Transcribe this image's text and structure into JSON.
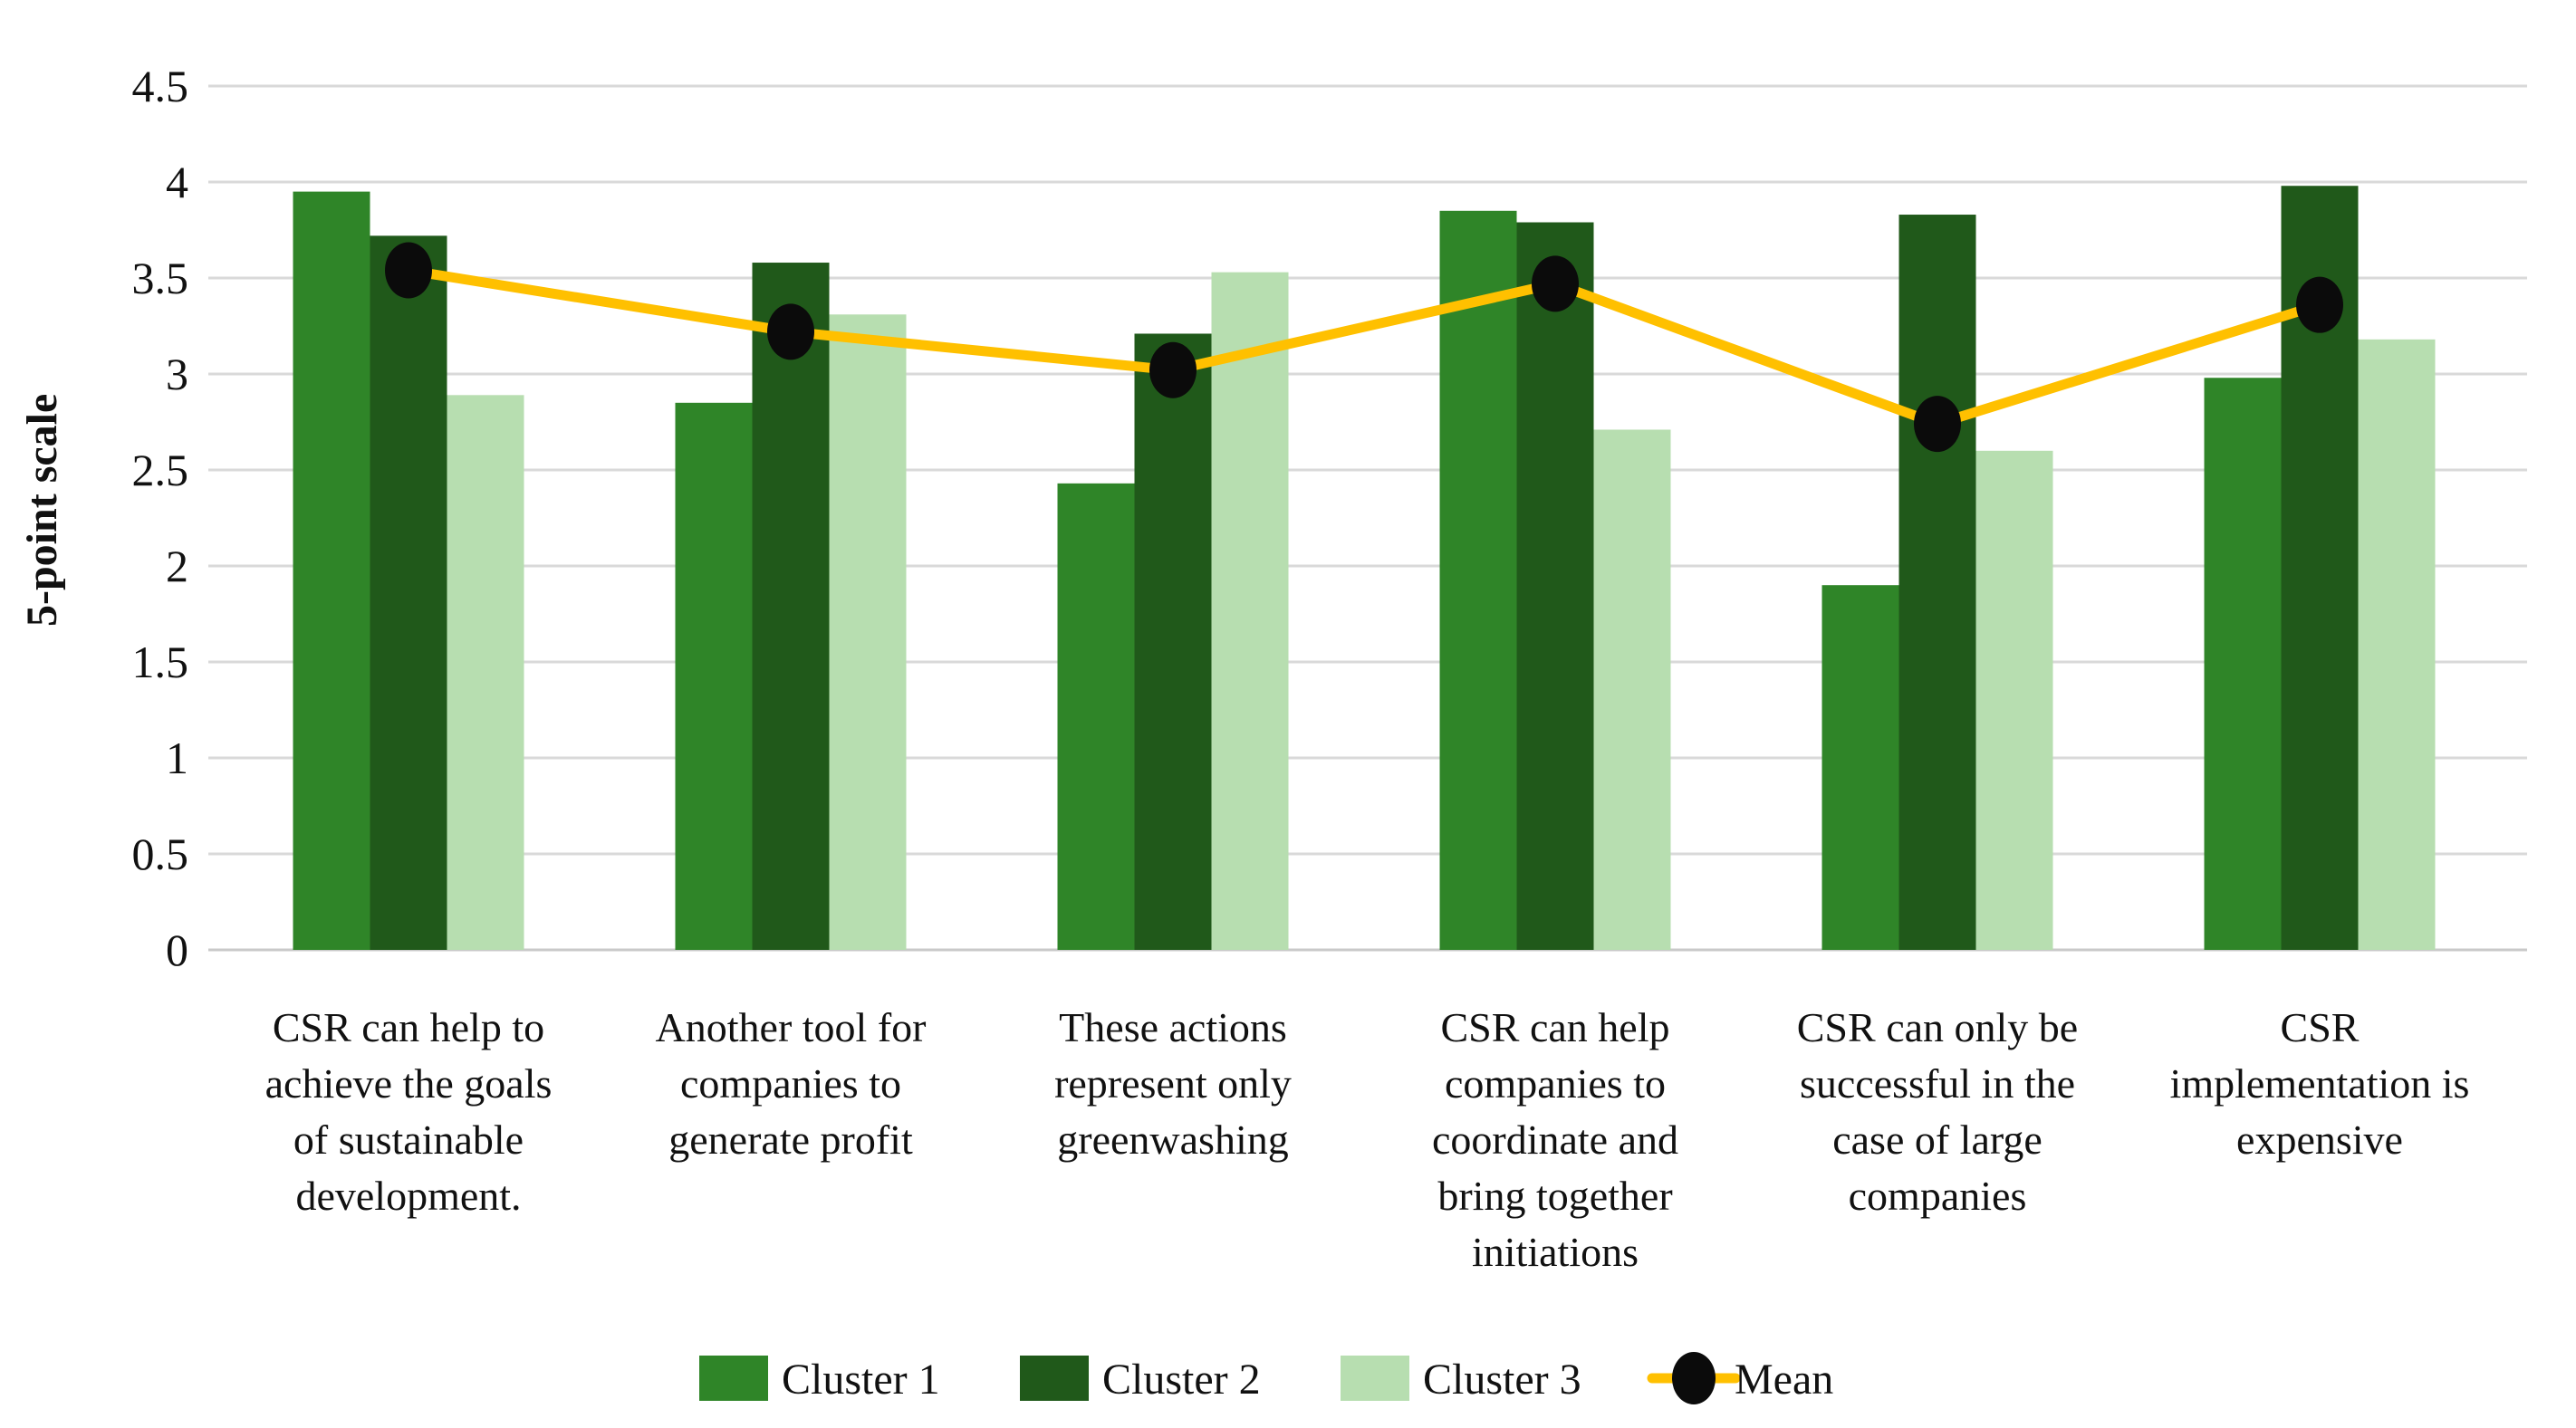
{
  "chart_data": {
    "type": "bar",
    "title": "",
    "xlabel": "",
    "ylabel": "5-point scale",
    "ylim": [
      0,
      4.5
    ],
    "ytick_step": 0.5,
    "ytick_labels": [
      "4.5",
      "4",
      "3.5",
      "3",
      "2.5",
      "2",
      "1.5",
      "1",
      "0.5",
      "0"
    ],
    "grid": true,
    "gridline_color": "#D9D9D9",
    "baseline_color": "#C9C9C9",
    "background": "#FFFFFF",
    "categories": [
      "CSR can help to achieve the goals of sustainable development.",
      "Another tool for companies to generate profit",
      "These actions represent only greenwashing",
      "CSR can help companies to coordinate and bring together initiations",
      "CSR can only be successful in the case of large companies",
      "CSR implementation is expensive"
    ],
    "category_lines": [
      [
        "CSR can help to",
        "achieve the goals",
        "of sustainable",
        "development."
      ],
      [
        "Another tool for",
        "companies to",
        "generate profit"
      ],
      [
        "These actions",
        "represent only",
        "greenwashing"
      ],
      [
        "CSR can help",
        "companies to",
        "coordinate and",
        "bring together",
        "initiations"
      ],
      [
        "CSR can only be",
        "successful in the",
        "case of large",
        "companies"
      ],
      [
        "CSR",
        "implementation is",
        "expensive"
      ]
    ],
    "series": [
      {
        "name": "Cluster 1",
        "type": "bar",
        "color": "#2F8528",
        "values": [
          3.95,
          2.85,
          2.43,
          3.85,
          1.9,
          2.98
        ]
      },
      {
        "name": "Cluster 2",
        "type": "bar",
        "color": "#20591A",
        "values": [
          3.72,
          3.58,
          3.21,
          3.79,
          3.83,
          3.98
        ]
      },
      {
        "name": "Cluster 3",
        "type": "bar",
        "color": "#B7DEB0",
        "values": [
          2.89,
          3.31,
          3.53,
          2.71,
          2.6,
          3.18
        ]
      },
      {
        "name": "Mean",
        "type": "line",
        "color": "#FFC000",
        "marker_color": "#0B0B0B",
        "values": [
          3.54,
          3.22,
          3.02,
          3.47,
          2.74,
          3.36
        ]
      }
    ],
    "legend": {
      "position": "bottom",
      "items": [
        "Cluster 1",
        "Cluster 2",
        "Cluster 3",
        "Mean"
      ]
    }
  }
}
